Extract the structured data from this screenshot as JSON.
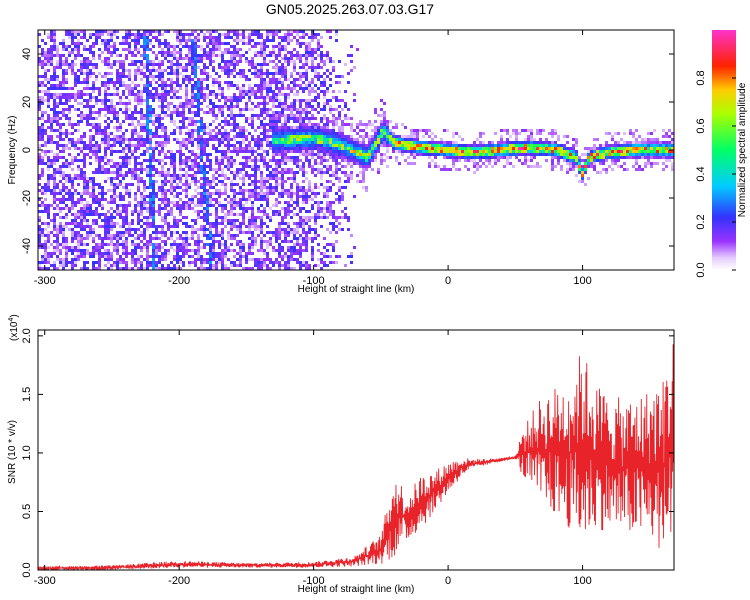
{
  "figure": {
    "title": "GN05.2025.263.07.03.G17"
  },
  "chart_data": [
    {
      "type": "heatmap",
      "title": "GN05.2025.263.07.03.G17",
      "xlabel": "Height of straight line (km)",
      "ylabel": "Frequency (Hz)",
      "xlim": [
        -305,
        168
      ],
      "ylim": [
        -50,
        50
      ],
      "x_ticks": [
        -300,
        -200,
        -100,
        0,
        100
      ],
      "x_tick_labels": [
        "-300",
        "-200",
        "-100",
        "0",
        "100"
      ],
      "y_ticks": [
        -40,
        -20,
        0,
        20,
        40
      ],
      "y_tick_labels": [
        "-40",
        "-20",
        "0",
        "20",
        "40"
      ],
      "colorbar": {
        "label": "Normalized spectral amplitude",
        "range": [
          0,
          1
        ],
        "ticks": [
          0.0,
          0.2,
          0.4,
          0.6,
          0.8
        ],
        "tick_labels": [
          "0.0",
          "0.2",
          "0.4",
          "0.6",
          "0.8"
        ],
        "colormap": "rainbow (violet → blue → cyan → green → yellow → red → magenta)"
      },
      "features": {
        "noise_region_x": [
          -305,
          -105
        ],
        "signal_ridge": {
          "x": [
            -120,
            -100,
            -80,
            -60,
            -48,
            -40,
            -20,
            0,
            20,
            40,
            60,
            80,
            95,
            100,
            105,
            120,
            140,
            168
          ],
          "frequency_hz": [
            4,
            5,
            2,
            -3,
            8,
            3,
            1,
            0,
            -1,
            0,
            1,
            0,
            -3,
            -10,
            -3,
            -1,
            0,
            0
          ]
        },
        "weak_streaks": [
          {
            "x_start": -225,
            "freq_start": 48,
            "x_end": -218,
            "freq_end": -50
          },
          {
            "x_start": -190,
            "freq_start": 48,
            "x_end": -176,
            "freq_end": -50
          }
        ]
      }
    },
    {
      "type": "area",
      "ylabel": "SNR (10 * v/v)",
      "xlabel": "Height of straight line (km)",
      "y_scale_note": "(x10",
      "y_scale_exp": "4",
      "color": "#e8232a",
      "xlim": [
        -305,
        168
      ],
      "ylim": [
        0,
        2.05
      ],
      "x_ticks": [
        -300,
        -200,
        -100,
        0,
        100
      ],
      "x_tick_labels": [
        "-300",
        "-200",
        "-100",
        "0",
        "100"
      ],
      "y_ticks": [
        0,
        0.5,
        1.0,
        1.5,
        2.0
      ],
      "y_tick_labels": [
        "0.0",
        "0.5",
        "1.0",
        "1.5",
        "2.0"
      ],
      "envelope": {
        "x": [
          -305,
          -250,
          -200,
          -150,
          -100,
          -70,
          -50,
          -40,
          -30,
          -20,
          -10,
          0,
          10,
          20,
          30,
          40,
          50,
          55,
          70,
          90,
          100,
          110,
          130,
          150,
          160,
          168
        ],
        "lower": [
          0.0,
          0.0,
          0.02,
          0.02,
          0.02,
          0.03,
          0.05,
          0.1,
          0.25,
          0.35,
          0.5,
          0.65,
          0.8,
          0.87,
          0.9,
          0.93,
          0.95,
          0.8,
          0.55,
          0.35,
          0.2,
          0.35,
          0.3,
          0.25,
          0.1,
          0.3
        ],
        "upper": [
          0.03,
          0.04,
          0.08,
          0.06,
          0.07,
          0.12,
          0.3,
          0.85,
          0.65,
          0.82,
          0.85,
          0.93,
          0.96,
          0.95,
          0.95,
          0.96,
          0.97,
          1.2,
          1.5,
          1.65,
          1.9,
          1.6,
          1.45,
          1.55,
          1.65,
          2.05
        ]
      }
    }
  ]
}
